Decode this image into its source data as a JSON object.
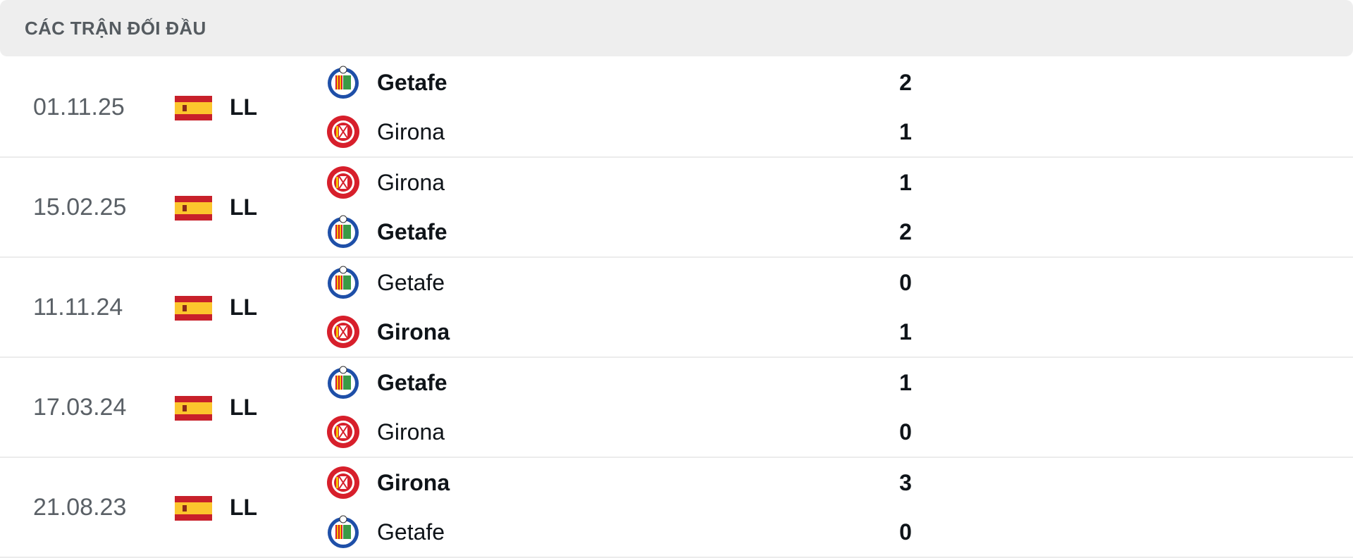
{
  "header": {
    "title": "CÁC TRẬN ĐỐI ĐẦU"
  },
  "colors": {
    "getafe": "#1e4fa8",
    "girona": "#d71f2b",
    "header_bg": "#eeeeee"
  },
  "matches": [
    {
      "date": "01.11.25",
      "league": "LL",
      "flag": "spain-flag",
      "home": {
        "name": "Getafe",
        "score": "2",
        "winner": true
      },
      "away": {
        "name": "Girona",
        "score": "1",
        "winner": false
      }
    },
    {
      "date": "15.02.25",
      "league": "LL",
      "flag": "spain-flag",
      "home": {
        "name": "Girona",
        "score": "1",
        "winner": false
      },
      "away": {
        "name": "Getafe",
        "score": "2",
        "winner": true
      }
    },
    {
      "date": "11.11.24",
      "league": "LL",
      "flag": "spain-flag",
      "home": {
        "name": "Getafe",
        "score": "0",
        "winner": false
      },
      "away": {
        "name": "Girona",
        "score": "1",
        "winner": true
      }
    },
    {
      "date": "17.03.24",
      "league": "LL",
      "flag": "spain-flag",
      "home": {
        "name": "Getafe",
        "score": "1",
        "winner": true
      },
      "away": {
        "name": "Girona",
        "score": "0",
        "winner": false
      }
    },
    {
      "date": "21.08.23",
      "league": "LL",
      "flag": "spain-flag",
      "home": {
        "name": "Girona",
        "score": "3",
        "winner": true
      },
      "away": {
        "name": "Getafe",
        "score": "0",
        "winner": false
      }
    }
  ]
}
